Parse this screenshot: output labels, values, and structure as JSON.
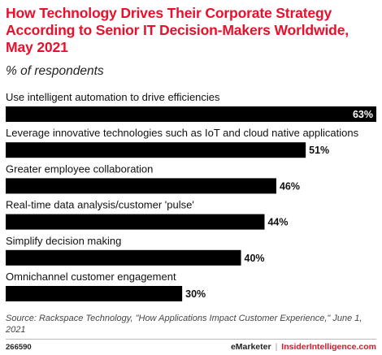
{
  "chart_data": {
    "type": "bar",
    "orientation": "horizontal",
    "title": "How Technology Drives Their Corporate Strategy According to Senior IT Decision-Makers Worldwide, May 2021",
    "subtitle": "% of respondents",
    "categories": [
      "Use intelligent automation to drive efficiencies",
      "Leverage innovative technologies such as IoT and cloud native applications",
      "Greater employee collaboration",
      "Real-time data analysis/customer 'pulse'",
      "Simplify decision making",
      "Omnichannel customer engagement"
    ],
    "values": [
      63,
      51,
      46,
      44,
      40,
      30
    ],
    "value_labels": [
      "63%",
      "51%",
      "46%",
      "44%",
      "40%",
      "30%"
    ],
    "xlim": [
      0,
      63
    ],
    "bar_color": "#000000",
    "grid": false
  },
  "source": "Source: Rackspace Technology, \"How Applications Impact Customer Experience,\" June 1, 2021",
  "footer": {
    "chart_id": "266590",
    "brand_left": "eMarketer",
    "separator": "|",
    "brand_right": "InsiderIntelligence.com"
  },
  "colors": {
    "accent": "#e8112d",
    "bar": "#000000",
    "text": "#111111"
  }
}
